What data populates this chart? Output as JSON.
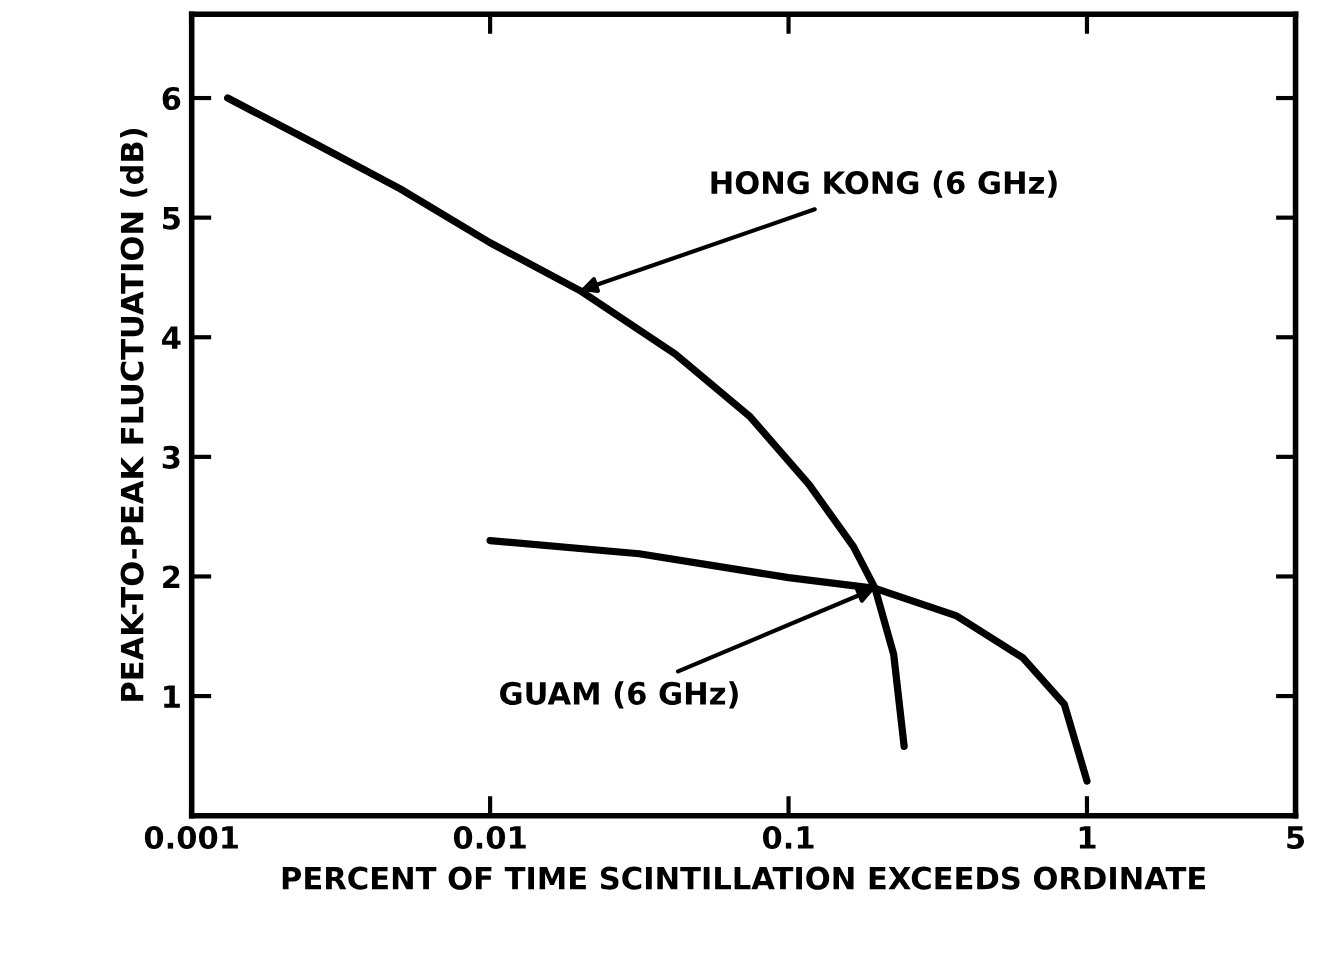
{
  "chart_data": {
    "type": "line",
    "xlabel": "PERCENT OF TIME SCINTILLATION EXCEEDS ORDINATE",
    "ylabel": "PEAK-TO-PEAK FLUCTUATION (dB)",
    "log": "x",
    "xlim": [
      0.001,
      5
    ],
    "xticks": [
      0.001,
      0.01,
      0.1,
      1,
      5
    ],
    "ylim": [
      0,
      6.7
    ],
    "yticks": [
      1,
      2,
      3,
      4,
      5,
      6
    ],
    "grid": false,
    "legend": false,
    "marker": "none",
    "line_style": "solid",
    "series": [
      {
        "color": "#000000",
        "x": [
          0.00132,
          0.00254,
          0.005,
          0.01,
          0.02,
          0.0417,
          0.074,
          0.117,
          0.165,
          0.195,
          0.225,
          0.244
        ],
        "values": [
          6.0,
          5.63,
          5.24,
          4.79,
          4.39,
          3.86,
          3.34,
          2.77,
          2.25,
          1.9,
          1.35,
          0.58
        ]
      },
      {
        "color": "#000000",
        "x": [
          0.01,
          0.0316,
          0.1,
          0.195,
          0.366,
          0.61,
          0.84,
          1.0
        ],
        "values": [
          2.3,
          2.19,
          1.99,
          1.9,
          1.67,
          1.32,
          0.93,
          0.29
        ]
      }
    ],
    "annotations": [
      {
        "text": "HONG KONG (6 GHz)",
        "x": 0.02,
        "y": 4.39
      },
      {
        "text": "GUAM (6 GHz)",
        "x": 0.195,
        "y": 1.9
      }
    ]
  }
}
